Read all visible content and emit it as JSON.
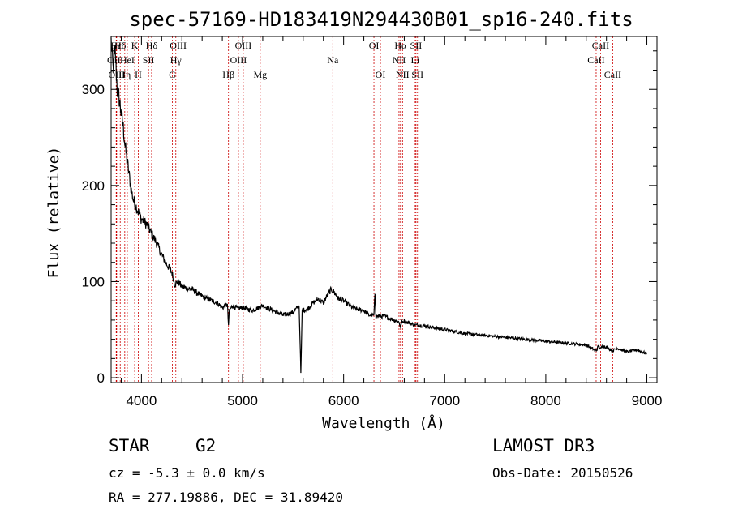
{
  "chart_data": {
    "type": "line",
    "title": "spec-57169-HD183419N294430B01_sp16-240.fits",
    "xlabel": "Wavelength (Å)",
    "ylabel": "Flux (relative)",
    "xlim": [
      3700,
      9100
    ],
    "ylim": [
      -5,
      355
    ],
    "xticks": [
      4000,
      5000,
      6000,
      7000,
      8000,
      9000
    ],
    "yticks": [
      0,
      100,
      200,
      300
    ],
    "series": [
      {
        "name": "spectrum",
        "x": [
          3700,
          3720,
          3740,
          3760,
          3780,
          3800,
          3820,
          3840,
          3860,
          3880,
          3900,
          3920,
          3940,
          3960,
          3980,
          4000,
          4050,
          4100,
          4150,
          4200,
          4250,
          4300,
          4330,
          4360,
          4400,
          4450,
          4500,
          4550,
          4600,
          4650,
          4700,
          4750,
          4800,
          4850,
          4861,
          4870,
          4900,
          4950,
          5000,
          5100,
          5200,
          5300,
          5400,
          5500,
          5560,
          5577,
          5590,
          5650,
          5700,
          5750,
          5800,
          5850,
          5880,
          5900,
          5950,
          6000,
          6100,
          6200,
          6250,
          6300,
          6310,
          6320,
          6400,
          6500,
          6550,
          6563,
          6570,
          6600,
          6700,
          6800,
          6900,
          7000,
          7200,
          7400,
          7600,
          7800,
          8000,
          8200,
          8400,
          8498,
          8520,
          8542,
          8560,
          8600,
          8662,
          8700,
          8800,
          8900,
          9000
        ],
        "values": [
          350,
          320,
          340,
          300,
          290,
          275,
          260,
          240,
          225,
          210,
          195,
          185,
          180,
          175,
          170,
          165,
          160,
          150,
          140,
          128,
          118,
          110,
          97,
          100,
          95,
          93,
          92,
          88,
          85,
          82,
          80,
          78,
          73,
          76,
          55,
          70,
          75,
          72,
          73,
          70,
          75,
          70,
          65,
          68,
          75,
          5,
          70,
          72,
          78,
          82,
          78,
          88,
          92,
          90,
          82,
          80,
          72,
          70,
          65,
          65,
          88,
          64,
          64,
          60,
          58,
          52,
          57,
          59,
          55,
          54,
          52,
          50,
          46,
          44,
          42,
          40,
          38,
          36,
          34,
          28,
          33,
          30,
          33,
          32,
          28,
          31,
          27,
          29,
          25
        ]
      }
    ],
    "spectral_lines": [
      {
        "label": "OII",
        "x": 3727,
        "row": 1
      },
      {
        "label": "Hε",
        "x": 3750,
        "row": 0
      },
      {
        "label": "OIII",
        "x": 3755,
        "row": 2
      },
      {
        "label": "Hδ",
        "x": 3790,
        "row": 0
      },
      {
        "label": "Hη",
        "x": 3835,
        "row": 2
      },
      {
        "label": "HeI",
        "x": 3860,
        "row": 1
      },
      {
        "label": "K",
        "x": 3933,
        "row": 0
      },
      {
        "label": "H",
        "x": 3968,
        "row": 2
      },
      {
        "label": "SII",
        "x": 4070,
        "row": 1
      },
      {
        "label": "Hδ",
        "x": 4101,
        "row": 0
      },
      {
        "label": "OIII",
        "x": 4363,
        "row": 0
      },
      {
        "label": "Hγ",
        "x": 4340,
        "row": 1
      },
      {
        "label": "G",
        "x": 4305,
        "row": 2
      },
      {
        "label": "OIII",
        "x": 5007,
        "row": 0
      },
      {
        "label": "OIII",
        "x": 4959,
        "row": 1
      },
      {
        "label": "Hβ",
        "x": 4861,
        "row": 2
      },
      {
        "label": "Mg",
        "x": 5175,
        "row": 2
      },
      {
        "label": "Na",
        "x": 5893,
        "row": 1
      },
      {
        "label": "OI",
        "x": 6300,
        "row": 0
      },
      {
        "label": "OI",
        "x": 6364,
        "row": 2
      },
      {
        "label": "Hα",
        "x": 6563,
        "row": 0
      },
      {
        "label": "SII",
        "x": 6716,
        "row": 0
      },
      {
        "label": "NII",
        "x": 6548,
        "row": 1
      },
      {
        "label": "Li",
        "x": 6708,
        "row": 1
      },
      {
        "label": "NII",
        "x": 6583,
        "row": 2
      },
      {
        "label": "SII",
        "x": 6731,
        "row": 2
      },
      {
        "label": "CaII",
        "x": 8542,
        "row": 0
      },
      {
        "label": "CaII",
        "x": 8498,
        "row": 1
      },
      {
        "label": "CaII",
        "x": 8662,
        "row": 2
      }
    ],
    "colors": {
      "spectrum": "#000000",
      "lines": "#cc0000",
      "frame": "#000000"
    }
  },
  "info": {
    "object_class": "STAR",
    "subclass": "G2",
    "survey": "LAMOST DR3",
    "redshift": "cz = -5.3 ± 0.0 km/s",
    "obs_date": "Obs-Date: 20150526",
    "coordinates": "RA = 277.19886, DEC =  31.89420"
  }
}
